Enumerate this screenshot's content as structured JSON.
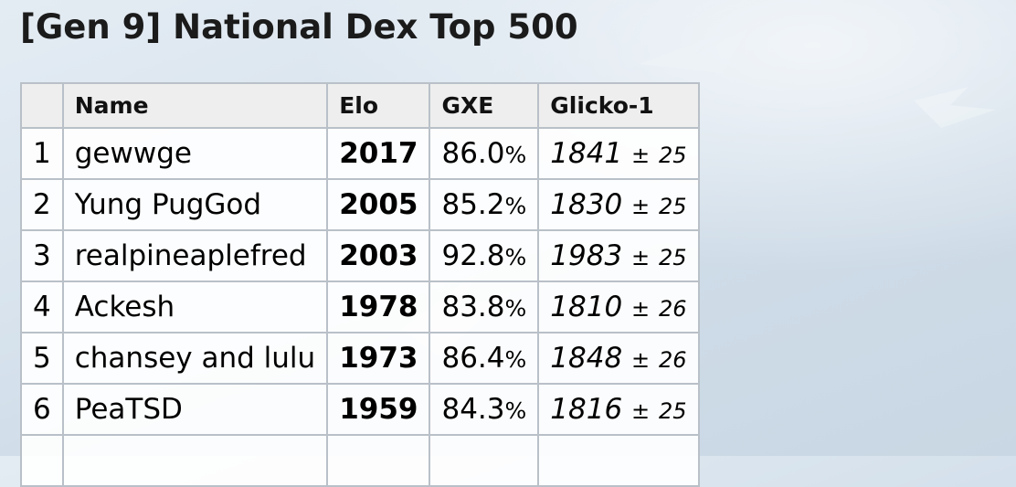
{
  "page": {
    "title": "[Gen 9] National Dex Top 500"
  },
  "table": {
    "headers": {
      "rank": "",
      "name": "Name",
      "elo": "Elo",
      "gxe": "GXE",
      "glicko": "Glicko-1"
    },
    "pm_symbol": "±",
    "pct_symbol": "%",
    "rows": [
      {
        "rank": "1",
        "name": "gewwge",
        "elo": "2017",
        "gxe": "86.0",
        "glicko": "1841",
        "dev": "25"
      },
      {
        "rank": "2",
        "name": "Yung PugGod",
        "elo": "2005",
        "gxe": "85.2",
        "glicko": "1830",
        "dev": "25"
      },
      {
        "rank": "3",
        "name": "realpineaplefred",
        "elo": "2003",
        "gxe": "92.8",
        "glicko": "1983",
        "dev": "25"
      },
      {
        "rank": "4",
        "name": "Ackesh",
        "elo": "1978",
        "gxe": "83.8",
        "glicko": "1810",
        "dev": "26"
      },
      {
        "rank": "5",
        "name": "chansey and lulu",
        "elo": "1973",
        "gxe": "86.4",
        "glicko": "1848",
        "dev": "26"
      },
      {
        "rank": "6",
        "name": "PeaTSD",
        "elo": "1959",
        "gxe": "84.3",
        "glicko": "1816",
        "dev": "25"
      }
    ]
  }
}
